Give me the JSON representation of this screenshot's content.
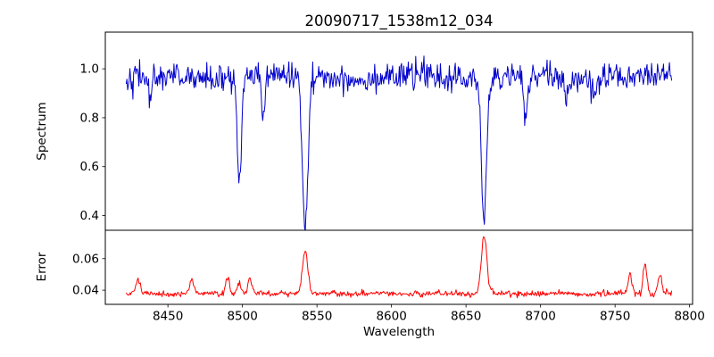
{
  "figure": {
    "title": "20090717_1538m12_034",
    "xlabel": "Wavelength",
    "background": "#ffffff"
  },
  "chart_data": [
    {
      "type": "line",
      "name": "spectrum",
      "title": "20090717_1538m12_034",
      "ylabel": "Spectrum",
      "xlabel": "",
      "line_color": "#0000cd",
      "xlim": [
        8408,
        8802
      ],
      "ylim": [
        0.34,
        1.15
      ],
      "xticks": [
        8450,
        8500,
        8550,
        8600,
        8650,
        8700,
        8750,
        8800
      ],
      "xtick_labels": [
        "8450",
        "8500",
        "8550",
        "8600",
        "8650",
        "8700",
        "8750",
        "8800"
      ],
      "yticks": [
        0.4,
        0.6,
        0.8,
        1.0
      ],
      "ytick_labels": [
        "0.4",
        "0.6",
        "0.8",
        "1.0"
      ],
      "x_start": 8422,
      "x_end": 8788,
      "n_points": 732,
      "baseline": 0.965,
      "noise_sigma": 0.028,
      "continuum_wave_amp": 0.008,
      "continuum_wave_period": 85,
      "seed": 42,
      "grid": false,
      "legend": false,
      "absorption_lines": [
        {
          "center": 8438.0,
          "depth": 0.1,
          "width": 1.2
        },
        {
          "center": 8498.0,
          "depth": 0.42,
          "width": 1.4
        },
        {
          "center": 8514.0,
          "depth": 0.14,
          "width": 1.2
        },
        {
          "center": 8542.1,
          "depth": 0.6,
          "width": 1.8
        },
        {
          "center": 8662.1,
          "depth": 0.58,
          "width": 1.7
        },
        {
          "center": 8690.0,
          "depth": 0.18,
          "width": 1.3
        },
        {
          "center": 8717.0,
          "depth": 0.1,
          "width": 1.2
        },
        {
          "center": 8736.0,
          "depth": 0.08,
          "width": 1.2
        }
      ]
    },
    {
      "type": "line",
      "name": "error",
      "ylabel": "Error",
      "xlabel": "Wavelength",
      "line_color": "#ff0000",
      "xlim": [
        8408,
        8802
      ],
      "ylim": [
        0.031,
        0.078
      ],
      "xticks": [
        8450,
        8500,
        8550,
        8600,
        8650,
        8700,
        8750,
        8800
      ],
      "xtick_labels": [
        "8450",
        "8500",
        "8550",
        "8600",
        "8650",
        "8700",
        "8750",
        "8800"
      ],
      "yticks": [
        0.04,
        0.06
      ],
      "ytick_labels": [
        "0.04",
        "0.06"
      ],
      "x_start": 8422,
      "x_end": 8788,
      "n_points": 732,
      "baseline": 0.0378,
      "noise_sigma": 0.0009,
      "continuum_wave_amp": 0.0004,
      "continuum_wave_period": 40,
      "seed": 1337,
      "grid": false,
      "legend": false,
      "spikes": [
        {
          "center": 8430.0,
          "height": 0.009,
          "width": 1.4
        },
        {
          "center": 8466.0,
          "height": 0.008,
          "width": 1.4
        },
        {
          "center": 8490.0,
          "height": 0.011,
          "width": 1.4
        },
        {
          "center": 8498.0,
          "height": 0.008,
          "width": 1.2
        },
        {
          "center": 8505.0,
          "height": 0.009,
          "width": 1.2
        },
        {
          "center": 8542.1,
          "height": 0.027,
          "width": 1.8
        },
        {
          "center": 8662.1,
          "height": 0.037,
          "width": 1.8
        },
        {
          "center": 8760.0,
          "height": 0.012,
          "width": 1.3
        },
        {
          "center": 8770.0,
          "height": 0.019,
          "width": 1.3
        },
        {
          "center": 8780.0,
          "height": 0.012,
          "width": 1.3
        }
      ]
    }
  ]
}
